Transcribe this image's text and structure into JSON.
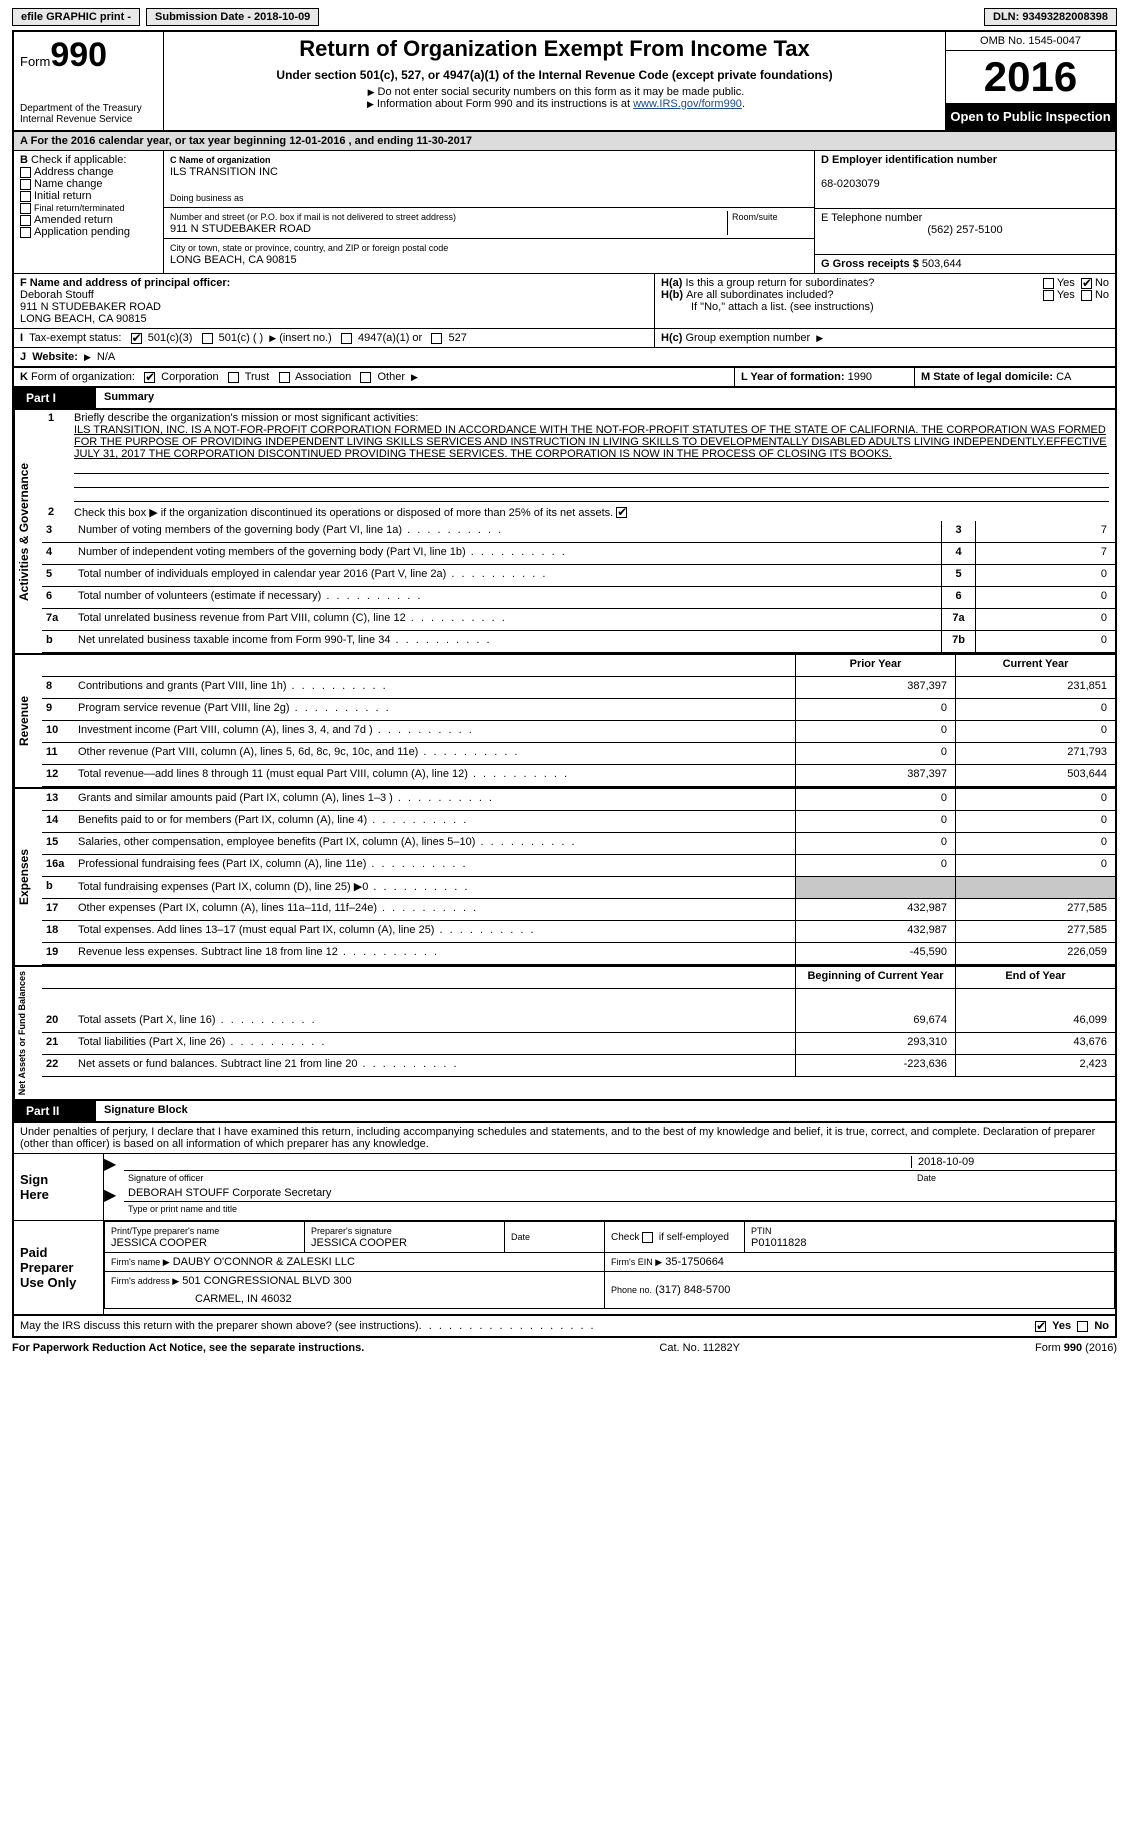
{
  "topbar": {
    "efile": "efile GRAPHIC print -",
    "submission_label": "Submission Date - 2018-10-09",
    "dln_label": "DLN: 93493282008398"
  },
  "header": {
    "form_label": "Form",
    "form_number": "990",
    "dept": "Department of the Treasury",
    "irs": "Internal Revenue Service",
    "title": "Return of Organization Exempt From Income Tax",
    "subtitle": "Under section 501(c), 527, or 4947(a)(1) of the Internal Revenue Code (except private foundations)",
    "note1": "Do not enter social security numbers on this form as it may be made public.",
    "note2": "Information about Form 990 and its instructions is at ",
    "link": "www.IRS.gov/form990",
    "omb": "OMB No. 1545-0047",
    "year": "2016",
    "open": "Open to Public Inspection"
  },
  "line_a": "For the 2016 calendar year, or tax year beginning 12-01-2016   , and ending 11-30-2017",
  "block_b": {
    "label": "Check if applicable:",
    "opts": [
      "Address change",
      "Name change",
      "Initial return",
      "Final return/terminated",
      "Amended return",
      "Application pending"
    ]
  },
  "block_c": {
    "name_label": "C Name of organization",
    "name": "ILS TRANSITION INC",
    "dba_label": "Doing business as",
    "dba": "",
    "street_label": "Number and street (or P.O. box if mail is not delivered to street address)",
    "room_label": "Room/suite",
    "street": "911 N STUDEBAKER ROAD",
    "city_label": "City or town, state or province, country, and ZIP or foreign postal code",
    "city": "LONG BEACH, CA  90815"
  },
  "block_d": {
    "label": "D Employer identification number",
    "value": "68-0203079"
  },
  "block_e": {
    "label": "E Telephone number",
    "value": "(562) 257-5100"
  },
  "block_g": {
    "label": "G Gross receipts $",
    "value": "503,644"
  },
  "block_f": {
    "label": "F  Name and address of principal officer:",
    "name": "Deborah Stouff",
    "street": "911 N STUDEBAKER ROAD",
    "city": "LONG BEACH, CA  90815"
  },
  "block_h": {
    "ha": "Is this a group return for subordinates?",
    "hb": "Are all subordinates included?",
    "hb_note": "If \"No,\" attach a list. (see instructions)",
    "hc": "Group exemption number",
    "yes": "Yes",
    "no": "No"
  },
  "block_i": {
    "label": "Tax-exempt status:",
    "opt1": "501(c)(3)",
    "opt2": "501(c) (   )",
    "opt2b": "(insert no.)",
    "opt3": "4947(a)(1) or",
    "opt4": "527"
  },
  "block_j": {
    "label": "Website:",
    "value": "N/A"
  },
  "block_k": {
    "label": "Form of organization:",
    "opts": [
      "Corporation",
      "Trust",
      "Association",
      "Other"
    ]
  },
  "block_l": {
    "label": "L Year of formation:",
    "value": "1990"
  },
  "block_m": {
    "label": "M State of legal domicile:",
    "value": "CA"
  },
  "part1": {
    "label": "Part I",
    "title": "Summary"
  },
  "mission_label": "Briefly describe the organization's mission or most significant activities:",
  "mission": "ILS TRANSITION, INC. IS A NOT-FOR-PROFIT CORPORATION FORMED IN ACCORDANCE WITH THE NOT-FOR-PROFIT STATUTES OF THE STATE OF CALIFORNIA. THE CORPORATION WAS FORMED FOR THE PURPOSE OF PROVIDING INDEPENDENT LIVING SKILLS SERVICES AND INSTRUCTION IN LIVING SKILLS TO DEVELOPMENTALLY DISABLED ADULTS LIVING INDEPENDENTLY.EFFECTIVE JULY 31, 2017 THE CORPORATION DISCONTINUED PROVIDING THESE SERVICES. THE CORPORATION IS NOW IN THE PROCESS OF CLOSING ITS BOOKS.",
  "gov_lines": {
    "l2": "Check this box ▶       if the organization discontinued its operations or disposed of more than 25% of its net assets.",
    "l3": "Number of voting members of the governing body (Part VI, line 1a)",
    "l4": "Number of independent voting members of the governing body (Part VI, line 1b)",
    "l5": "Total number of individuals employed in calendar year 2016 (Part V, line 2a)",
    "l6": "Total number of volunteers (estimate if necessary)",
    "l7a": "Total unrelated business revenue from Part VIII, column (C), line 12",
    "l7b": "Net unrelated business taxable income from Form 990-T, line 34",
    "v3": "7",
    "v4": "7",
    "v5": "0",
    "v6": "0",
    "v7a": "0",
    "v7b": "0"
  },
  "col_headers": {
    "prior": "Prior Year",
    "current": "Current Year",
    "begin": "Beginning of Current Year",
    "end": "End of Year"
  },
  "revenue": [
    {
      "n": "8",
      "t": "Contributions and grants (Part VIII, line 1h)",
      "p": "387,397",
      "c": "231,851"
    },
    {
      "n": "9",
      "t": "Program service revenue (Part VIII, line 2g)",
      "p": "0",
      "c": "0"
    },
    {
      "n": "10",
      "t": "Investment income (Part VIII, column (A), lines 3, 4, and 7d )",
      "p": "0",
      "c": "0"
    },
    {
      "n": "11",
      "t": "Other revenue (Part VIII, column (A), lines 5, 6d, 8c, 9c, 10c, and 11e)",
      "p": "0",
      "c": "271,793"
    },
    {
      "n": "12",
      "t": "Total revenue—add lines 8 through 11 (must equal Part VIII, column (A), line 12)",
      "p": "387,397",
      "c": "503,644"
    }
  ],
  "expenses": [
    {
      "n": "13",
      "t": "Grants and similar amounts paid (Part IX, column (A), lines 1–3 )",
      "p": "0",
      "c": "0"
    },
    {
      "n": "14",
      "t": "Benefits paid to or for members (Part IX, column (A), line 4)",
      "p": "0",
      "c": "0"
    },
    {
      "n": "15",
      "t": "Salaries, other compensation, employee benefits (Part IX, column (A), lines 5–10)",
      "p": "0",
      "c": "0"
    },
    {
      "n": "16a",
      "t": "Professional fundraising fees (Part IX, column (A), line 11e)",
      "p": "0",
      "c": "0"
    },
    {
      "n": "b",
      "t": "Total fundraising expenses (Part IX, column (D), line 25) ▶0",
      "p": "",
      "c": "",
      "shaded": true
    },
    {
      "n": "17",
      "t": "Other expenses (Part IX, column (A), lines 11a–11d, 11f–24e)",
      "p": "432,987",
      "c": "277,585"
    },
    {
      "n": "18",
      "t": "Total expenses. Add lines 13–17 (must equal Part IX, column (A), line 25)",
      "p": "432,987",
      "c": "277,585"
    },
    {
      "n": "19",
      "t": "Revenue less expenses. Subtract line 18 from line 12",
      "p": "-45,590",
      "c": "226,059"
    }
  ],
  "netassets": [
    {
      "n": "20",
      "t": "Total assets (Part X, line 16)",
      "p": "69,674",
      "c": "46,099"
    },
    {
      "n": "21",
      "t": "Total liabilities (Part X, line 26)",
      "p": "293,310",
      "c": "43,676"
    },
    {
      "n": "22",
      "t": "Net assets or fund balances. Subtract line 21 from line 20",
      "p": "-223,636",
      "c": "2,423"
    }
  ],
  "side_labels": {
    "gov": "Activities & Governance",
    "rev": "Revenue",
    "exp": "Expenses",
    "net": "Net Assets or Fund Balances"
  },
  "part2": {
    "label": "Part II",
    "title": "Signature Block"
  },
  "perjury": "Under penalties of perjury, I declare that I have examined this return, including accompanying schedules and statements, and to the best of my knowledge and belief, it is true, correct, and complete. Declaration of preparer (other than officer) is based on all information of which preparer has any knowledge.",
  "sign": {
    "here": "Sign Here",
    "sig_label": "Signature of officer",
    "date": "2018-10-09",
    "date_label": "Date",
    "name": "DEBORAH STOUFF Corporate Secretary",
    "name_label": "Type or print name and title"
  },
  "preparer": {
    "block_label": "Paid Preparer Use Only",
    "name_label": "Print/Type preparer's name",
    "name": "JESSICA COOPER",
    "sig_label": "Preparer's signature",
    "sig": "JESSICA COOPER",
    "date_label": "Date",
    "check_label": "Check        if self-employed",
    "ptin_label": "PTIN",
    "ptin": "P01011828",
    "firm_name_label": "Firm's name    ▶",
    "firm_name": "DAUBY O'CONNOR & ZALESKI LLC",
    "firm_ein_label": "Firm's EIN ▶",
    "firm_ein": "35-1750664",
    "firm_addr_label": "Firm's address ▶",
    "firm_addr1": "501 CONGRESSIONAL BLVD 300",
    "firm_addr2": "CARMEL, IN  46032",
    "phone_label": "Phone no.",
    "phone": "(317) 848-5700"
  },
  "discuss": "May the IRS discuss this return with the preparer shown above? (see instructions)",
  "footer": {
    "pra": "For Paperwork Reduction Act Notice, see the separate instructions.",
    "cat": "Cat. No. 11282Y",
    "form": "Form 990 (2016)"
  }
}
